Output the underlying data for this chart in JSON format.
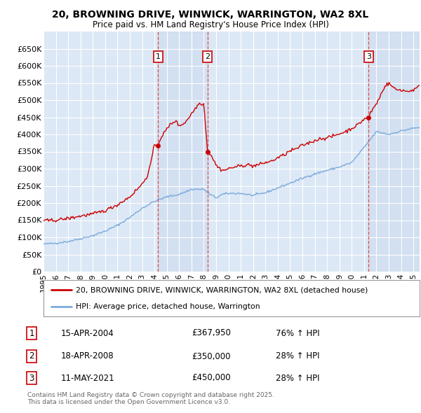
{
  "title": "20, BROWNING DRIVE, WINWICK, WARRINGTON, WA2 8XL",
  "subtitle": "Price paid vs. HM Land Registry's House Price Index (HPI)",
  "background_color": "#ffffff",
  "plot_bg_color": "#dce8f5",
  "grid_color": "#ffffff",
  "sale_color": "#cc0000",
  "hpi_color": "#7aaadd",
  "shade_color": "#c8d8ee",
  "ylim": [
    0,
    700000
  ],
  "yticks": [
    0,
    50000,
    100000,
    150000,
    200000,
    250000,
    300000,
    350000,
    400000,
    450000,
    500000,
    550000,
    600000,
    650000
  ],
  "ytick_labels": [
    "£0",
    "£50K",
    "£100K",
    "£150K",
    "£200K",
    "£250K",
    "£300K",
    "£350K",
    "£400K",
    "£450K",
    "£500K",
    "£550K",
    "£600K",
    "£650K"
  ],
  "sales": [
    {
      "date": 2004.29,
      "price": 367950,
      "label": "1"
    },
    {
      "date": 2008.3,
      "price": 350000,
      "label": "2"
    },
    {
      "date": 2021.36,
      "price": 450000,
      "label": "3"
    }
  ],
  "sale_vlines": [
    2004.29,
    2008.3,
    2021.36
  ],
  "legend_sale": "20, BROWNING DRIVE, WINWICK, WARRINGTON, WA2 8XL (detached house)",
  "legend_hpi": "HPI: Average price, detached house, Warrington",
  "table_rows": [
    {
      "num": "1",
      "date": "15-APR-2004",
      "price": "£367,950",
      "change": "76% ↑ HPI"
    },
    {
      "num": "2",
      "date": "18-APR-2008",
      "price": "£350,000",
      "change": "28% ↑ HPI"
    },
    {
      "num": "3",
      "date": "11-MAY-2021",
      "price": "£450,000",
      "change": "28% ↑ HPI"
    }
  ],
  "footer": "Contains HM Land Registry data © Crown copyright and database right 2025.\nThis data is licensed under the Open Government Licence v3.0.",
  "xstart": 1995,
  "xend": 2025.5
}
